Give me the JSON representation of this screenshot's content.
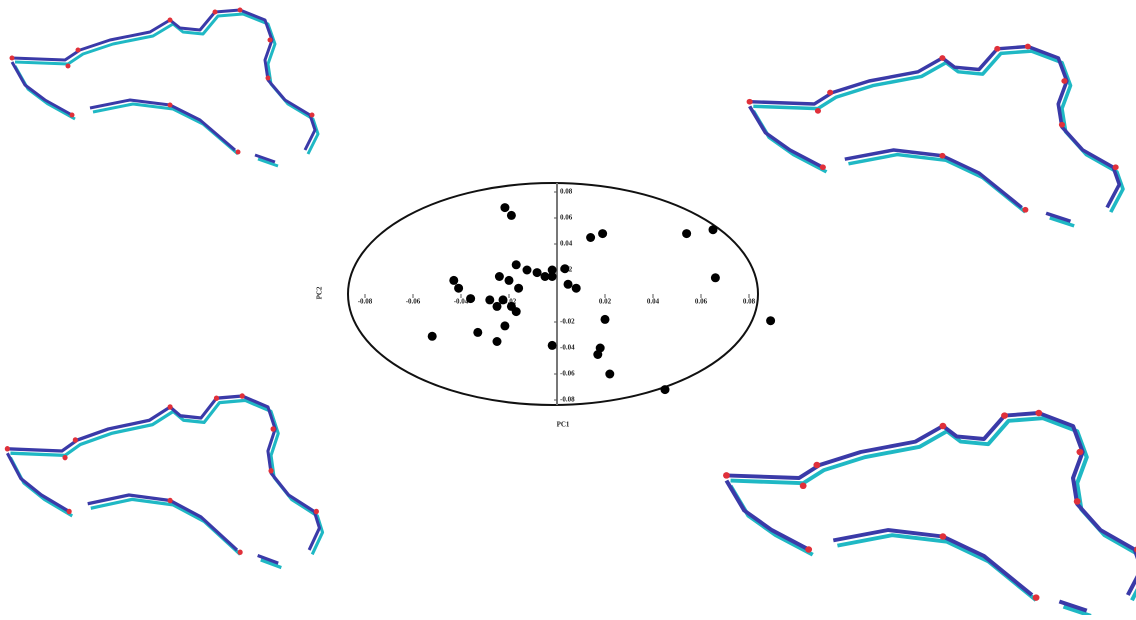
{
  "chart_data": {
    "type": "scatter",
    "x_label": "PC1",
    "y_label": "PC2",
    "color": "#000000",
    "x": [
      -0.0217,
      -0.019,
      0.019,
      0.014,
      0.054,
      0.065,
      -0.017,
      -0.0125,
      0.0033,
      -0.0083,
      -0.005,
      -0.002,
      -0.024,
      -0.02,
      -0.002,
      0.066,
      -0.043,
      -0.041,
      -0.016,
      0.0046,
      0.008,
      -0.036,
      -0.028,
      -0.0225,
      -0.019,
      -0.025,
      -0.017,
      0.02,
      0.089,
      -0.0217,
      -0.052,
      -0.033,
      -0.025,
      0.018,
      0.017,
      -0.002,
      0.022,
      0.045
    ],
    "y": [
      0.068,
      0.062,
      0.048,
      0.045,
      0.048,
      0.051,
      0.024,
      0.02,
      0.021,
      0.018,
      0.015,
      0.02,
      0.015,
      0.012,
      0.015,
      0.014,
      0.012,
      0.006,
      0.006,
      0.009,
      0.006,
      -0.002,
      -0.003,
      -0.003,
      -0.008,
      -0.008,
      -0.012,
      -0.018,
      -0.019,
      -0.023,
      -0.031,
      -0.028,
      -0.035,
      -0.04,
      -0.045,
      -0.038,
      -0.06,
      -0.072
    ],
    "xlim": [
      -0.09,
      0.09
    ],
    "ylim": [
      -0.09,
      0.09
    ],
    "xticks": [
      -0.08,
      -0.06,
      -0.04,
      -0.02,
      0.02,
      0.04,
      0.06,
      0.08
    ],
    "yticks": [
      0.08,
      0.06,
      0.04,
      0.02,
      -0.02,
      -0.04,
      -0.06,
      -0.08
    ]
  }
}
